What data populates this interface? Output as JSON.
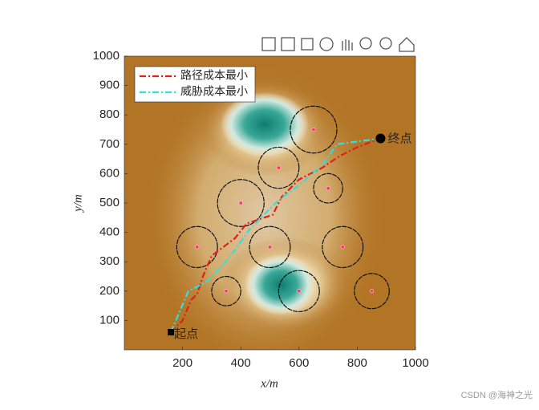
{
  "chart_data": {
    "type": "line",
    "xlabel": "x/m",
    "ylabel": "y/m",
    "xlim": [
      0,
      1000
    ],
    "ylim": [
      0,
      1000
    ],
    "xticks": [
      200,
      400,
      600,
      800,
      1000
    ],
    "yticks": [
      100,
      200,
      300,
      400,
      500,
      600,
      700,
      800,
      900,
      1000
    ],
    "legend": "upper left",
    "series": [
      {
        "name": "路径成本最小",
        "color": "#e0201a",
        "x": [
          160,
          200,
          230,
          250,
          270,
          300,
          340,
          380,
          420,
          480,
          510,
          540,
          600,
          680,
          740,
          800,
          880
        ],
        "values": [
          60,
          100,
          170,
          190,
          250,
          320,
          350,
          380,
          430,
          450,
          460,
          520,
          580,
          620,
          660,
          690,
          720
        ]
      },
      {
        "name": "威胁成本最小",
        "color": "#30e0e0",
        "x": [
          160,
          190,
          220,
          280,
          340,
          380,
          430,
          470,
          530,
          600,
          680,
          730,
          880
        ],
        "values": [
          60,
          130,
          200,
          230,
          290,
          340,
          410,
          450,
          510,
          560,
          630,
          700,
          720
        ]
      }
    ],
    "threats": {
      "color": "#ff3070",
      "x": [
        650,
        530,
        700,
        400,
        250,
        500,
        750,
        350,
        600,
        850
      ],
      "y": [
        750,
        620,
        550,
        500,
        350,
        350,
        350,
        200,
        200,
        200
      ],
      "r": [
        80,
        70,
        50,
        80,
        70,
        70,
        70,
        50,
        70,
        60
      ]
    },
    "start": {
      "label": "起点",
      "x": 160,
      "y": 60
    },
    "end": {
      "label": "终点",
      "x": 880,
      "y": 720
    }
  },
  "watermark": "CSDN @海神之光"
}
